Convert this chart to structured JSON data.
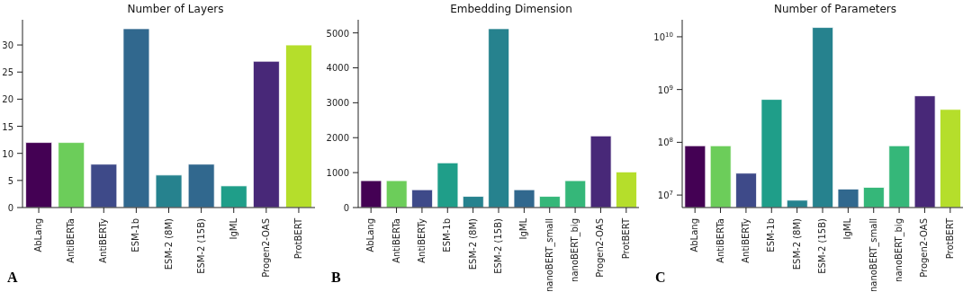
{
  "chart_data": [
    {
      "type": "bar",
      "title": "Number of Layers",
      "categories": [
        "AbLang",
        "AntiBERTa",
        "AntiBERTy",
        "ESM-1b",
        "ESM-2 (8M)",
        "ESM-2 (15B)",
        "IgML",
        "Progen2-OAS",
        "ProtBERT"
      ],
      "values": [
        12,
        12,
        8,
        33,
        6,
        8,
        4,
        27,
        30
      ],
      "colors": [
        "#440154",
        "#6ccd5a",
        "#3e4a89",
        "#31688e",
        "#26828e",
        "#31688e",
        "#1f9e89",
        "#482878",
        "#b5de2b"
      ],
      "ylim": [
        0,
        34.65
      ],
      "yticks": [
        0,
        5,
        10,
        15,
        20,
        25,
        30
      ],
      "annotations": [
        "A"
      ]
    },
    {
      "type": "bar",
      "title": "Embedding Dimension",
      "categories": [
        "AbLang",
        "AntiBERTa",
        "AntiBERTy",
        "ESM-1b",
        "ESM-2 (8M)",
        "ESM-2 (15B)",
        "IgML",
        "nanoBERT_small",
        "nanoBERT_big",
        "Progen2-OAS",
        "ProtBERT"
      ],
      "values": [
        770,
        770,
        510,
        1280,
        320,
        5120,
        510,
        320,
        770,
        2050,
        1020
      ],
      "colors": [
        "#440154",
        "#6ccd5a",
        "#3e4a89",
        "#1f9e89",
        "#26828e",
        "#26828e",
        "#31688e",
        "#35b779",
        "#35b779",
        "#482878",
        "#b5de2b"
      ],
      "ylim": [
        0,
        5376
      ],
      "yticks": [
        0,
        1000,
        2000,
        3000,
        4000,
        5000
      ],
      "annotations": [
        "B"
      ]
    },
    {
      "type": "bar",
      "title": "Number of Parameters",
      "categories": [
        "AbLang",
        "AntiBERTa",
        "AntiBERTy",
        "ESM-1b",
        "ESM-2 (8M)",
        "ESM-2 (15B)",
        "IgML",
        "nanoBERT_small",
        "nanoBERT_big",
        "Progen2-OAS",
        "ProtBERT"
      ],
      "values": [
        86000000,
        86000000,
        26000000,
        650000000,
        8000000,
        15000000000,
        13000000,
        14000000,
        86000000,
        760000000,
        420000000
      ],
      "colors": [
        "#440154",
        "#6ccd5a",
        "#3e4a89",
        "#1f9e89",
        "#26828e",
        "#26828e",
        "#31688e",
        "#35b779",
        "#35b779",
        "#482878",
        "#b5de2b"
      ],
      "log": true,
      "ylim": [
        5800000,
        21000000000
      ],
      "yticks": [
        {
          "value": 10000000,
          "label": "10$^{7}$"
        },
        {
          "value": 100000000,
          "label": "10$^{8}$"
        },
        {
          "value": 1000000000,
          "label": "10$^{9}$"
        },
        {
          "value": 10000000000,
          "label": "10$^{10}$"
        }
      ],
      "annotations": [
        "C"
      ]
    }
  ]
}
